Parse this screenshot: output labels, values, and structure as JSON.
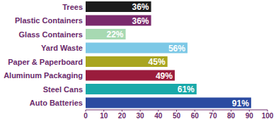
{
  "chart_data": {
    "type": "bar",
    "orientation": "horizontal",
    "categories": [
      "Trees",
      "Plastic Containers",
      "Glass Containers",
      "Yard Waste",
      "Paper & Paperboard",
      "Aluminum Packaging",
      "Steel Cans",
      "Auto Batteries"
    ],
    "values": [
      36,
      36,
      22,
      56,
      45,
      49,
      61,
      91
    ],
    "value_labels": [
      "36%",
      "36%",
      "22%",
      "56%",
      "45%",
      "49%",
      "61%",
      "91%"
    ],
    "colors": [
      "#1c1c1c",
      "#7a2a6c",
      "#a7d9b2",
      "#7cc8e6",
      "#a9a51f",
      "#9a1c3c",
      "#19a9a9",
      "#2b4ba1"
    ],
    "data_labels": true,
    "grid": false,
    "xlim": [
      0,
      100
    ],
    "xticks": [
      0,
      10,
      20,
      30,
      40,
      50,
      60,
      70,
      80,
      90,
      100
    ]
  }
}
